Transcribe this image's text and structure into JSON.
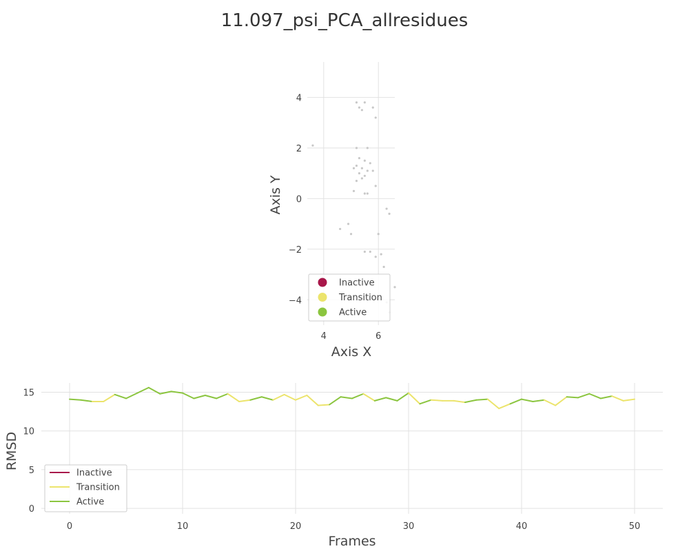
{
  "title": "11.097_psi_PCA_allresidues",
  "colors": {
    "inactive": "#a8174a",
    "transition": "#ece46c",
    "active": "#8bc53f",
    "scatter_point": "#c8c8c8"
  },
  "legend_labels": [
    "Inactive",
    "Transition",
    "Active"
  ],
  "chart_data": [
    {
      "type": "scatter",
      "xlabel": "Axis X",
      "ylabel": "Axis Y",
      "xlim": [
        3.4,
        6.6
      ],
      "ylim": [
        -5.0,
        5.4
      ],
      "xticks": [
        4,
        6
      ],
      "yticks": [
        -4,
        -2,
        0,
        2,
        4
      ],
      "legend_position": "bottom-left",
      "legend_markers": "circle",
      "points": [
        [
          3.6,
          2.1
        ],
        [
          5.2,
          3.8
        ],
        [
          5.5,
          3.8
        ],
        [
          5.3,
          3.6
        ],
        [
          5.4,
          3.5
        ],
        [
          5.8,
          3.6
        ],
        [
          5.9,
          3.2
        ],
        [
          5.2,
          2.0
        ],
        [
          5.6,
          2.0
        ],
        [
          5.3,
          1.6
        ],
        [
          5.5,
          1.5
        ],
        [
          5.7,
          1.4
        ],
        [
          5.2,
          1.3
        ],
        [
          5.4,
          1.2
        ],
        [
          5.1,
          1.2
        ],
        [
          5.6,
          1.1
        ],
        [
          5.8,
          1.1
        ],
        [
          5.3,
          1.0
        ],
        [
          5.5,
          0.9
        ],
        [
          5.4,
          0.8
        ],
        [
          5.2,
          0.7
        ],
        [
          5.9,
          0.5
        ],
        [
          5.1,
          0.3
        ],
        [
          5.5,
          0.2
        ],
        [
          5.6,
          0.2
        ],
        [
          6.3,
          -0.4
        ],
        [
          6.4,
          -0.6
        ],
        [
          4.6,
          -1.2
        ],
        [
          4.9,
          -1.0
        ],
        [
          5.0,
          -1.4
        ],
        [
          6.0,
          -1.4
        ],
        [
          5.5,
          -2.1
        ],
        [
          5.7,
          -2.1
        ],
        [
          6.1,
          -2.2
        ],
        [
          5.9,
          -2.3
        ],
        [
          6.2,
          -2.7
        ],
        [
          6.6,
          -3.5
        ],
        [
          6.3,
          -4.1
        ],
        [
          6.4,
          -4.5
        ]
      ]
    },
    {
      "type": "line",
      "xlabel": "Frames",
      "ylabel": "RMSD",
      "xlim": [
        -2.5,
        52.5
      ],
      "ylim": [
        -0.7,
        16.2
      ],
      "xticks": [
        0,
        10,
        20,
        30,
        40,
        50
      ],
      "yticks": [
        0,
        5,
        10,
        15
      ],
      "legend_position": "bottom-left",
      "legend_markers": "line",
      "x": [
        0,
        1,
        2,
        3,
        4,
        5,
        6,
        7,
        8,
        9,
        10,
        11,
        12,
        13,
        14,
        15,
        16,
        17,
        18,
        19,
        20,
        21,
        22,
        23,
        24,
        25,
        26,
        27,
        28,
        29,
        30,
        31,
        32,
        33,
        34,
        35,
        36,
        37,
        38,
        39,
        40,
        41,
        42,
        43,
        44,
        45,
        46,
        47,
        48,
        49,
        50
      ],
      "y": [
        14.1,
        14.0,
        13.8,
        13.8,
        14.7,
        14.2,
        14.9,
        15.6,
        14.8,
        15.1,
        14.9,
        14.2,
        14.6,
        14.2,
        14.8,
        13.8,
        14.0,
        14.4,
        14.0,
        14.7,
        14.0,
        14.6,
        13.3,
        13.4,
        14.4,
        14.2,
        14.8,
        13.9,
        14.3,
        13.9,
        14.9,
        13.5,
        14.0,
        13.9,
        13.9,
        13.7,
        14.0,
        14.1,
        12.9,
        13.5,
        14.1,
        13.8,
        14.0,
        13.3,
        14.4,
        14.3,
        14.8,
        14.2,
        14.5,
        13.9,
        14.1
      ],
      "state": [
        "A",
        "A",
        "A",
        "T",
        "T",
        "A",
        "A",
        "A",
        "A",
        "A",
        "A",
        "A",
        "A",
        "A",
        "A",
        "T",
        "T",
        "A",
        "A",
        "T",
        "T",
        "T",
        "T",
        "T",
        "A",
        "A",
        "A",
        "T",
        "A",
        "A",
        "A",
        "T",
        "A",
        "T",
        "T",
        "T",
        "A",
        "A",
        "T",
        "T",
        "A",
        "A",
        "A",
        "T",
        "T",
        "A",
        "A",
        "A",
        "A",
        "T",
        "T"
      ]
    }
  ]
}
